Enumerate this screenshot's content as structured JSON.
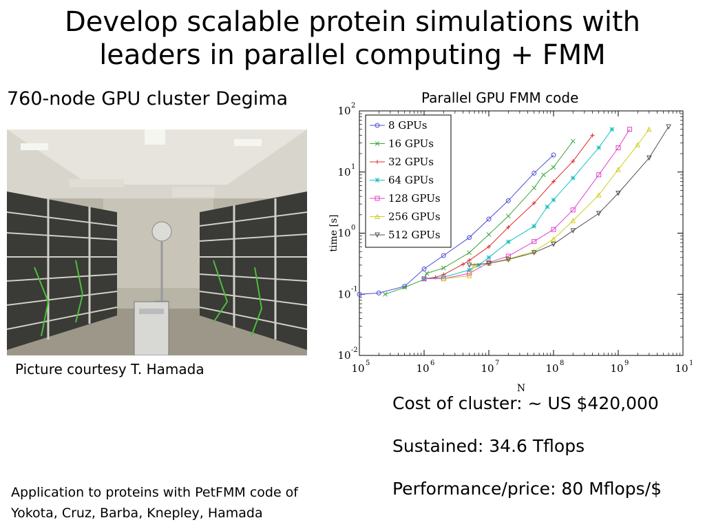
{
  "title": {
    "line1": "Develop scalable protein simulations with",
    "line2": "leaders in parallel computing + FMM"
  },
  "left": {
    "heading": "760-node GPU cluster Degima",
    "photo_caption": "Picture courtesy T. Hamada",
    "note_line1": "Application to proteins with PetFMM code of",
    "note_line2": "Yokota, Cruz, Barba, Knepley, Hamada"
  },
  "right": {
    "stats": [
      "Cost of cluster: ~ US $420,000",
      "Sustained: 34.6 Tflops",
      "Performance/price: 80 Mflops/$"
    ]
  },
  "chart_data": {
    "type": "line",
    "title": "Parallel GPU FMM code",
    "xlabel": "N",
    "ylabel": "time [s]",
    "xscale": "log",
    "yscale": "log",
    "xlim": [
      100000,
      10000000000
    ],
    "ylim": [
      0.01,
      100
    ],
    "x_ticks": [
      {
        "base": "10",
        "exp": "5"
      },
      {
        "base": "10",
        "exp": "6"
      },
      {
        "base": "10",
        "exp": "7"
      },
      {
        "base": "10",
        "exp": "8"
      },
      {
        "base": "10",
        "exp": "9"
      },
      {
        "base": "10",
        "exp": "10"
      }
    ],
    "y_ticks": [
      {
        "base": "10",
        "exp": "-2"
      },
      {
        "base": "10",
        "exp": "-1"
      },
      {
        "base": "10",
        "exp": "0"
      },
      {
        "base": "10",
        "exp": "1"
      },
      {
        "base": "10",
        "exp": "2"
      }
    ],
    "legend_position": "top-left",
    "series": [
      {
        "name": "8 GPUs",
        "color": "#4a4ad8",
        "marker": "circle",
        "x": [
          100000,
          200000,
          500000,
          1000000,
          2000000,
          5000000,
          10000000,
          20000000,
          50000000,
          100000000
        ],
        "y": [
          0.1,
          0.105,
          0.135,
          0.26,
          0.43,
          0.85,
          1.7,
          3.4,
          9.6,
          19
        ]
      },
      {
        "name": "16 GPUs",
        "color": "#3aa53a",
        "marker": "x",
        "x": [
          250000,
          500000,
          1000000,
          1100000,
          2000000,
          5000000,
          10000000,
          20000000,
          50000000,
          70000000,
          100000000,
          200000000
        ],
        "y": [
          0.1,
          0.13,
          0.175,
          0.22,
          0.27,
          0.48,
          0.95,
          1.9,
          5.5,
          9,
          12,
          32
        ]
      },
      {
        "name": "32 GPUs",
        "color": "#e02828",
        "marker": "plus",
        "x": [
          1000000,
          1500000,
          2000000,
          4000000,
          5000000,
          10000000,
          20000000,
          50000000,
          100000000,
          200000000,
          400000000
        ],
        "y": [
          0.18,
          0.19,
          0.21,
          0.31,
          0.36,
          0.6,
          1.25,
          3.1,
          7,
          15,
          40
        ]
      },
      {
        "name": "64 GPUs",
        "color": "#17bfbf",
        "marker": "star",
        "x": [
          1000000,
          2000000,
          5000000,
          7000000,
          10000000,
          20000000,
          50000000,
          80000000,
          100000000,
          200000000,
          500000000,
          800000000
        ],
        "y": [
          0.18,
          0.19,
          0.25,
          0.3,
          0.4,
          0.72,
          1.3,
          2.7,
          3.5,
          8,
          25,
          50
        ]
      },
      {
        "name": "128 GPUs",
        "color": "#e040c8",
        "marker": "square",
        "x": [
          1000000,
          2000000,
          5000000,
          10000000,
          20000000,
          50000000,
          100000000,
          200000000,
          500000000,
          1000000000,
          1500000000
        ],
        "y": [
          0.18,
          0.18,
          0.22,
          0.33,
          0.42,
          0.73,
          1.15,
          2.4,
          9,
          25,
          50
        ]
      },
      {
        "name": "256 GPUs",
        "color": "#cfcf20",
        "marker": "tri-up",
        "x": [
          2000000,
          5000000,
          6000000,
          10000000,
          20000000,
          50000000,
          100000000,
          200000000,
          500000000,
          1000000000,
          2000000000,
          3000000000
        ],
        "y": [
          0.18,
          0.2,
          0.3,
          0.32,
          0.38,
          0.5,
          0.8,
          1.6,
          4.2,
          11,
          28,
          50
        ]
      },
      {
        "name": "512 GPUs",
        "color": "#505050",
        "marker": "tri-down",
        "x": [
          5000000,
          10000000,
          20000000,
          50000000,
          100000000,
          200000000,
          500000000,
          1000000000,
          3000000000,
          6000000000
        ],
        "y": [
          0.3,
          0.32,
          0.37,
          0.48,
          0.66,
          1.1,
          2.1,
          4.5,
          17,
          55
        ]
      }
    ]
  }
}
